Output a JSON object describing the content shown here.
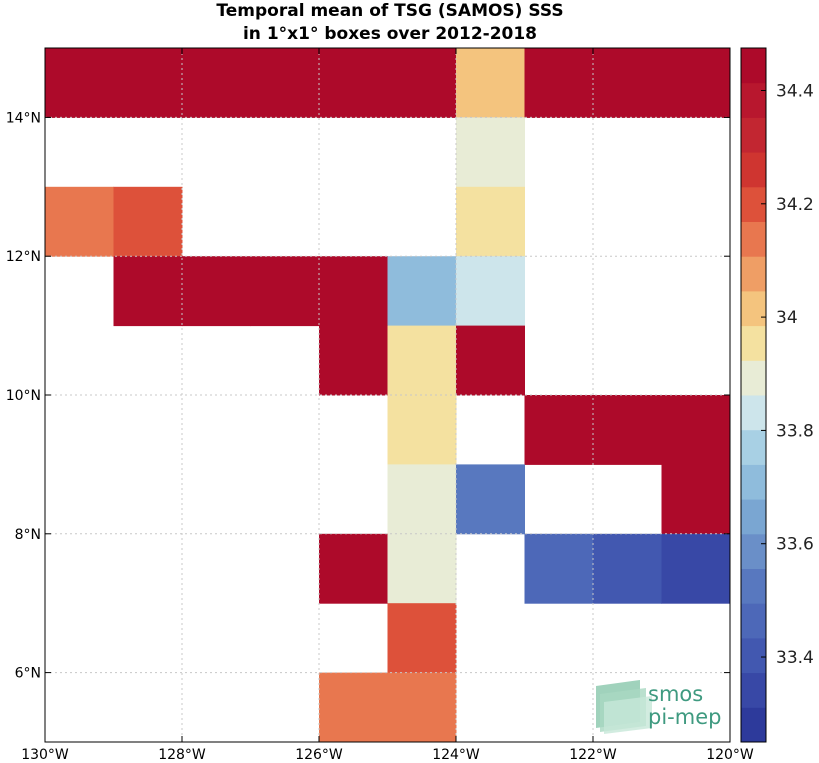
{
  "chart_data": {
    "type": "heatmap",
    "title": [
      "Temporal mean of TSG (SAMOS) SSS",
      "in 1°x1° boxes over 2012-2018"
    ],
    "x_range": [
      -130,
      -120
    ],
    "y_range": [
      5,
      15
    ],
    "x_ticks": [
      {
        "value": -130,
        "label": "130°W"
      },
      {
        "value": -128,
        "label": "128°W"
      },
      {
        "value": -126,
        "label": "126°W"
      },
      {
        "value": -124,
        "label": "124°W"
      },
      {
        "value": -122,
        "label": "122°W"
      },
      {
        "value": -120,
        "label": "120°W"
      }
    ],
    "y_ticks": [
      {
        "value": 6,
        "label": "6°N"
      },
      {
        "value": 8,
        "label": "8°N"
      },
      {
        "value": 10,
        "label": "10°N"
      },
      {
        "value": 12,
        "label": "12°N"
      },
      {
        "value": 14,
        "label": "14°N"
      }
    ],
    "grid": true,
    "colorbar": {
      "range": [
        33.25,
        34.475
      ],
      "levels": 20,
      "ticks": [
        {
          "value": 33.4,
          "label": "33.4"
        },
        {
          "value": 33.6,
          "label": "33.6"
        },
        {
          "value": 33.8,
          "label": "33.8"
        },
        {
          "value": 34.0,
          "label": "34"
        },
        {
          "value": 34.2,
          "label": "34.2"
        },
        {
          "value": 34.4,
          "label": "34.4"
        }
      ],
      "colors": [
        "#2d3a9b",
        "#3848a6",
        "#4258b0",
        "#4d68b8",
        "#5878bf",
        "#6a8fc8",
        "#7aa6d2",
        "#8fbcdc",
        "#a8d0e4",
        "#cde5eb",
        "#e8ecd6",
        "#f4e1a0",
        "#f4c47e",
        "#ef9e65",
        "#e8774f",
        "#dd513a",
        "#cf3530",
        "#c22631",
        "#b8172e",
        "#ad0a2a"
      ]
    },
    "cells": [
      {
        "lon": -130,
        "lat": 14,
        "sss": 34.47
      },
      {
        "lon": -129,
        "lat": 14,
        "sss": 34.47
      },
      {
        "lon": -128,
        "lat": 14,
        "sss": 34.47
      },
      {
        "lon": -127,
        "lat": 14,
        "sss": 34.47
      },
      {
        "lon": -126,
        "lat": 14,
        "sss": 34.47
      },
      {
        "lon": -125,
        "lat": 14,
        "sss": 34.47
      },
      {
        "lon": -124,
        "lat": 14,
        "sss": 34.03
      },
      {
        "lon": -123,
        "lat": 14,
        "sss": 34.47
      },
      {
        "lon": -122,
        "lat": 14,
        "sss": 34.47
      },
      {
        "lon": -121,
        "lat": 14,
        "sss": 34.47
      },
      {
        "lon": -124,
        "lat": 13,
        "sss": 33.92
      },
      {
        "lon": -130,
        "lat": 12,
        "sss": 34.12
      },
      {
        "lon": -129,
        "lat": 12,
        "sss": 34.22
      },
      {
        "lon": -124,
        "lat": 12,
        "sss": 33.98
      },
      {
        "lon": -129,
        "lat": 11,
        "sss": 34.42
      },
      {
        "lon": -128,
        "lat": 11,
        "sss": 34.42
      },
      {
        "lon": -127,
        "lat": 11,
        "sss": 34.42
      },
      {
        "lon": -126,
        "lat": 11,
        "sss": 34.47
      },
      {
        "lon": -125,
        "lat": 11,
        "sss": 33.72
      },
      {
        "lon": -124,
        "lat": 11,
        "sss": 33.86
      },
      {
        "lon": -126,
        "lat": 10,
        "sss": 34.47
      },
      {
        "lon": -125,
        "lat": 10,
        "sss": 33.98
      },
      {
        "lon": -124,
        "lat": 10,
        "sss": 34.47
      },
      {
        "lon": -125,
        "lat": 9,
        "sss": 33.98
      },
      {
        "lon": -123,
        "lat": 9,
        "sss": 34.47
      },
      {
        "lon": -122,
        "lat": 9,
        "sss": 34.47
      },
      {
        "lon": -121,
        "lat": 9,
        "sss": 34.47
      },
      {
        "lon": -125,
        "lat": 8,
        "sss": 33.92
      },
      {
        "lon": -124,
        "lat": 8,
        "sss": 33.55
      },
      {
        "lon": -121,
        "lat": 8,
        "sss": 34.47
      },
      {
        "lon": -126,
        "lat": 7,
        "sss": 34.47
      },
      {
        "lon": -125,
        "lat": 7,
        "sss": 33.92
      },
      {
        "lon": -123,
        "lat": 7,
        "sss": 33.47
      },
      {
        "lon": -122,
        "lat": 7,
        "sss": 33.41
      },
      {
        "lon": -121,
        "lat": 7,
        "sss": 33.33
      },
      {
        "lon": -125,
        "lat": 6,
        "sss": 34.18
      },
      {
        "lon": -126,
        "lat": 5,
        "sss": 34.12
      },
      {
        "lon": -125,
        "lat": 5,
        "sss": 34.12
      }
    ]
  },
  "logo": {
    "line1": "smos",
    "line2": "pi-mep",
    "color": "#3f9a80"
  }
}
